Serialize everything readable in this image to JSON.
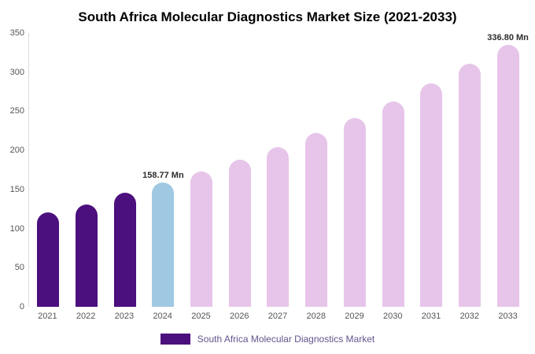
{
  "title": "South Africa Molecular Diagnostics Market Size (2021-2033)",
  "legend": {
    "label": "South Africa Molecular Diagnostics Market",
    "color": "#4c0f7e"
  },
  "colors": {
    "historical_purple": "#4c0f7e",
    "base_year_blue": "#9fc8e2",
    "forecast_pink": "#e7c5ea",
    "axis_text": "#555555",
    "annotation_text": "#2d2d2d"
  },
  "chart_data": {
    "type": "bar",
    "title": "South Africa Molecular Diagnostics Market Size (2021-2033)",
    "categories": [
      "2021",
      "2022",
      "2023",
      "2024",
      "2025",
      "2026",
      "2027",
      "2028",
      "2029",
      "2030",
      "2031",
      "2032",
      "2033"
    ],
    "values": [
      120.5,
      131.0,
      145.5,
      158.77,
      172.7,
      187.8,
      204.2,
      222.1,
      241.5,
      262.6,
      285.6,
      310.6,
      336.8
    ],
    "bar_colors": [
      "#4c0f7e",
      "#4c0f7e",
      "#4c0f7e",
      "#9fc8e2",
      "#e7c5ea",
      "#e7c5ea",
      "#e7c5ea",
      "#e7c5ea",
      "#e7c5ea",
      "#e7c5ea",
      "#e7c5ea",
      "#e7c5ea",
      "#e7c5ea"
    ],
    "annotations": [
      {
        "index": 3,
        "text": "158.77 Mn"
      },
      {
        "index": 12,
        "text": "336.80 Mn"
      }
    ],
    "unit": "Mn",
    "xlabel": "",
    "ylabel": "",
    "ylim": [
      0,
      350
    ],
    "yticks": [
      0,
      50,
      100,
      150,
      200,
      250,
      300,
      350
    ],
    "grid": false,
    "legend_position": "bottom"
  }
}
